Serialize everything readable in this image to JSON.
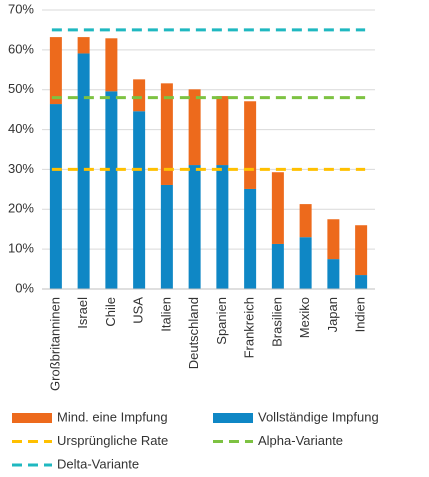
{
  "chart_data": {
    "type": "stacked-bar",
    "categories": [
      "Großbritanninen",
      "Israel",
      "Chile",
      "USA",
      "Italien",
      "Deutschland",
      "Spanien",
      "Frankreich",
      "Brasilien",
      "Mexiko",
      "Japan",
      "Indien"
    ],
    "series": [
      {
        "name": "Mind. eine Impfung",
        "color": "#ed6a1c",
        "values": [
          16.8,
          4.1,
          13.3,
          8.0,
          25.5,
          19.0,
          17.3,
          22.0,
          18.0,
          8.3,
          10.0,
          12.5
        ]
      },
      {
        "name": "Vollständige Impfung",
        "color": "#0f87c5",
        "values": [
          46.4,
          59.1,
          49.6,
          44.6,
          26.1,
          31.1,
          31.1,
          25.1,
          11.3,
          13.0,
          7.5,
          3.5
        ]
      }
    ],
    "reference_lines": [
      {
        "name": "Ursprüngliche Rate",
        "color": "#ffc000",
        "value": 30
      },
      {
        "name": "Alpha-Variante",
        "color": "#7dc242",
        "value": 48
      },
      {
        "name": "Delta-Variante",
        "color": "#1fb8c0",
        "value": 65
      }
    ],
    "ylim": [
      0,
      70
    ],
    "yticks": [
      {
        "value": 0,
        "label": "0%"
      },
      {
        "value": 10,
        "label": "10%"
      },
      {
        "value": 20,
        "label": "20%"
      },
      {
        "value": 30,
        "label": "30%"
      },
      {
        "value": 40,
        "label": "40%"
      },
      {
        "value": 50,
        "label": "50%"
      },
      {
        "value": 60,
        "label": "60%"
      },
      {
        "value": 70,
        "label": "70%"
      }
    ],
    "grid": true
  }
}
